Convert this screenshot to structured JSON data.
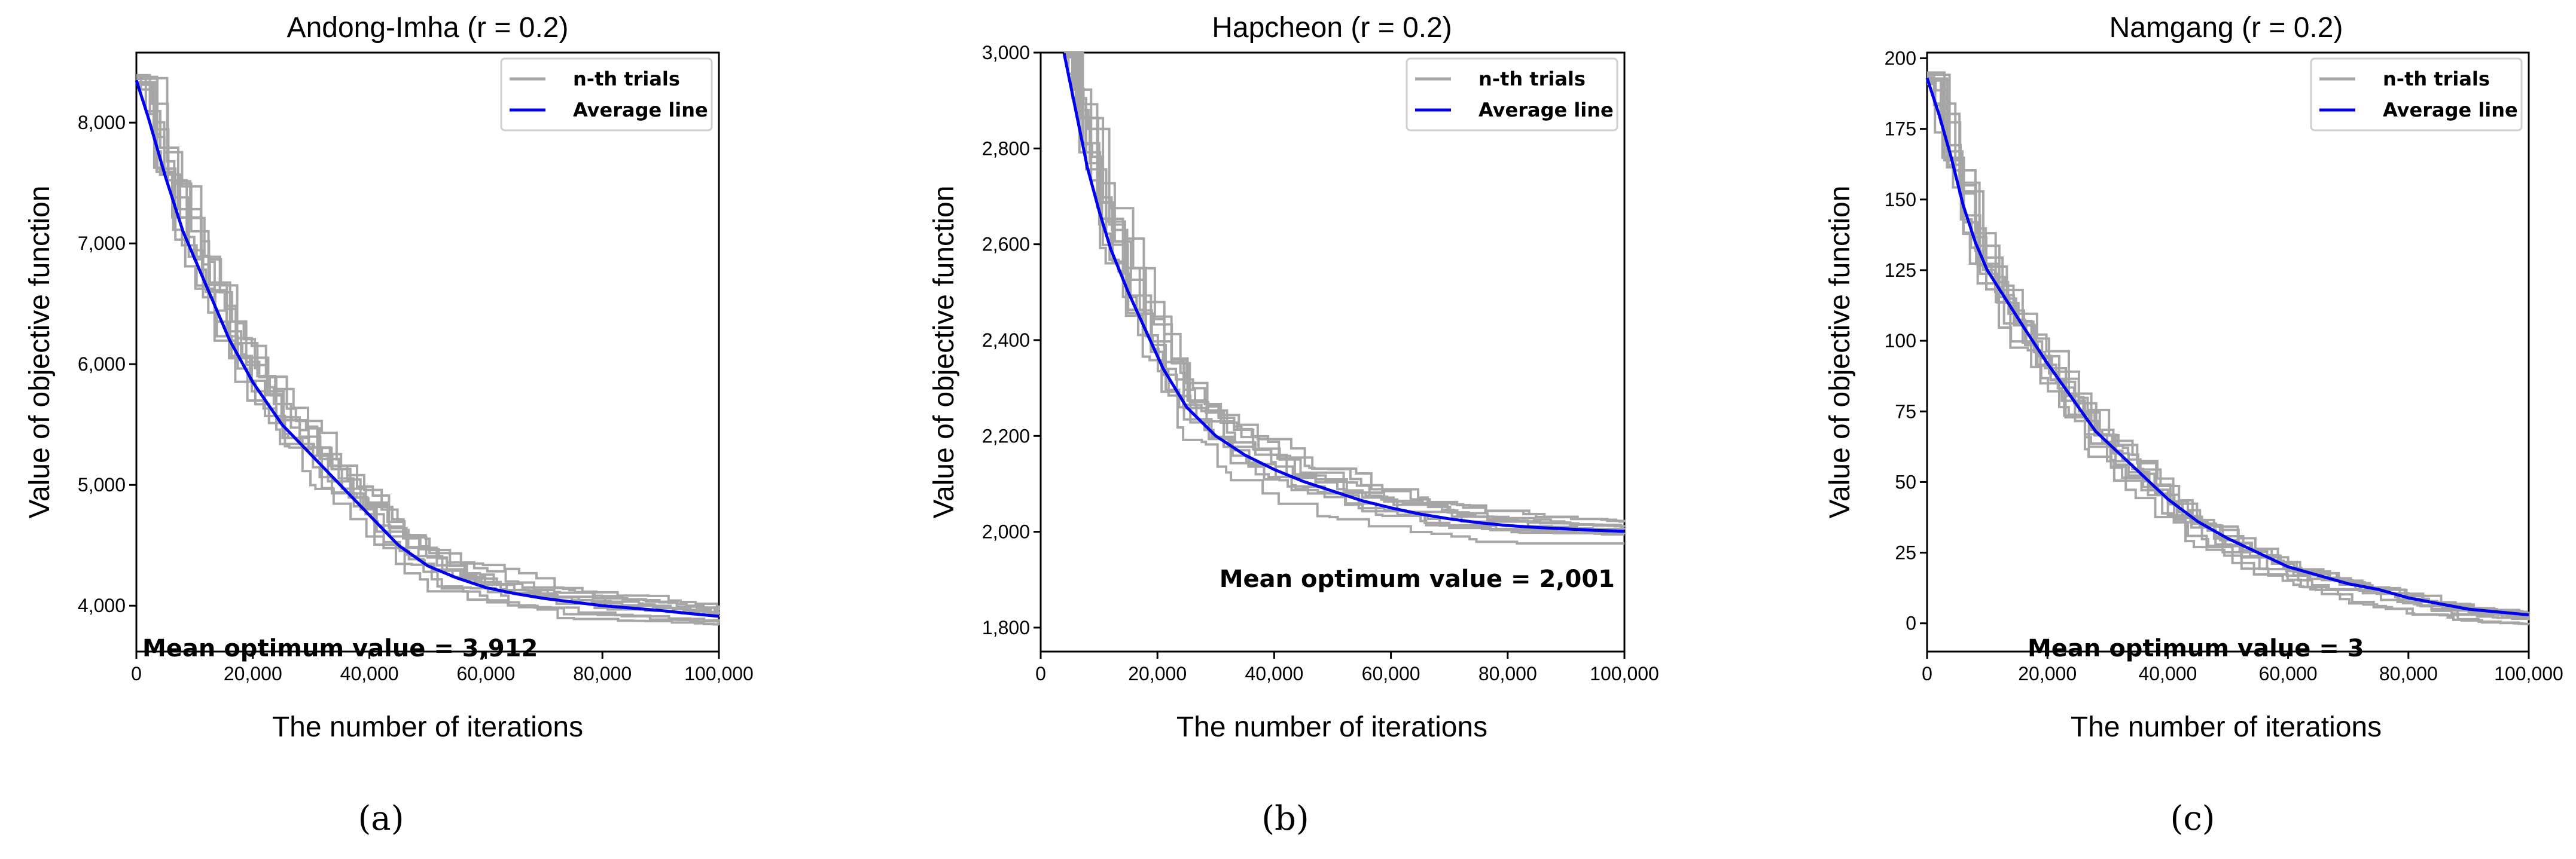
{
  "chart_data": [
    {
      "type": "line",
      "panel_caption": "(a)",
      "title": "Andong-Imha (r = 0.2)",
      "xlabel": "The number of iterations",
      "ylabel": "Value of objective function",
      "xlim": [
        0,
        100000
      ],
      "ylim": [
        3620,
        8580
      ],
      "xticks": [
        0,
        20000,
        40000,
        60000,
        80000,
        100000
      ],
      "xtick_labels": [
        "0",
        "20,000",
        "40,000",
        "60,000",
        "80,000",
        "100,000"
      ],
      "yticks": [
        4000,
        5000,
        6000,
        7000,
        8000
      ],
      "ytick_labels": [
        "4,000",
        "5,000",
        "6,000",
        "7,000",
        "8,000"
      ],
      "annotation": "Mean optimum value = 3,912",
      "legend": {
        "placement": "top-right",
        "entries": [
          "n-th trials",
          "Average line"
        ]
      },
      "series": [
        {
          "name": "n-th trials",
          "color": "#a6a6a6",
          "trial_count": 10
        },
        {
          "name": "Average line",
          "color": "#0000ee",
          "x": [
            0,
            2000,
            5000,
            8000,
            12000,
            16000,
            20000,
            25000,
            30000,
            35000,
            40000,
            45000,
            50000,
            55000,
            60000,
            65000,
            70000,
            75000,
            80000,
            85000,
            90000,
            95000,
            100000
          ],
          "y": [
            8350,
            8050,
            7550,
            7100,
            6650,
            6200,
            5850,
            5500,
            5250,
            5000,
            4750,
            4500,
            4330,
            4230,
            4150,
            4100,
            4060,
            4030,
            4000,
            3980,
            3960,
            3935,
            3912
          ]
        }
      ]
    },
    {
      "type": "line",
      "panel_caption": "(b)",
      "title": "Hapcheon (r = 0.2)",
      "xlabel": "The number of iterations",
      "ylabel": "Value of objective function",
      "xlim": [
        0,
        100000
      ],
      "ylim": [
        1750,
        3000
      ],
      "xticks": [
        0,
        20000,
        40000,
        60000,
        80000,
        100000
      ],
      "xtick_labels": [
        "0",
        "20,000",
        "40,000",
        "60,000",
        "80,000",
        "100,000"
      ],
      "yticks": [
        1800,
        2000,
        2200,
        2400,
        2600,
        2800,
        3000
      ],
      "ytick_labels": [
        "1,800",
        "2,000",
        "2,200",
        "2,400",
        "2,600",
        "2,800",
        "3,000"
      ],
      "annotation": "Mean optimum value = 2,001",
      "legend": {
        "placement": "top-right",
        "entries": [
          "n-th trials",
          "Average line"
        ]
      },
      "series": [
        {
          "name": "n-th trials",
          "color": "#a6a6a6",
          "trial_count": 10
        },
        {
          "name": "Average line",
          "color": "#0000ee",
          "x": [
            4000,
            6000,
            8000,
            10000,
            12000,
            15000,
            18000,
            21000,
            25000,
            30000,
            35000,
            40000,
            45000,
            50000,
            55000,
            60000,
            65000,
            70000,
            75000,
            80000,
            85000,
            90000,
            95000,
            100000
          ],
          "y": [
            3000,
            2880,
            2760,
            2670,
            2590,
            2500,
            2420,
            2340,
            2260,
            2200,
            2160,
            2130,
            2105,
            2085,
            2065,
            2050,
            2037,
            2027,
            2019,
            2013,
            2009,
            2006,
            2003,
            2001
          ]
        }
      ]
    },
    {
      "type": "line",
      "panel_caption": "(c)",
      "title": "Namgang (r = 0.2)",
      "xlabel": "The number of iterations",
      "ylabel": "Value of objective function",
      "xlim": [
        0,
        100000
      ],
      "ylim": [
        -10,
        202
      ],
      "xticks": [
        0,
        20000,
        40000,
        60000,
        80000,
        100000
      ],
      "xtick_labels": [
        "0",
        "20,000",
        "40,000",
        "60,000",
        "80,000",
        "100,000"
      ],
      "yticks": [
        0,
        25,
        50,
        75,
        100,
        125,
        150,
        175,
        200
      ],
      "ytick_labels": [
        "0",
        "25",
        "50",
        "75",
        "100",
        "125",
        "150",
        "175",
        "200"
      ],
      "annotation": "Mean optimum value = 3",
      "legend": {
        "placement": "top-right",
        "entries": [
          "n-th trials",
          "Average line"
        ]
      },
      "series": [
        {
          "name": "n-th trials",
          "color": "#a6a6a6",
          "trial_count": 10
        },
        {
          "name": "Average line",
          "color": "#0000ee",
          "x": [
            0,
            2000,
            4000,
            6000,
            8000,
            10000,
            13000,
            16000,
            20000,
            24000,
            28000,
            32000,
            36000,
            40000,
            45000,
            50000,
            55000,
            60000,
            65000,
            70000,
            75000,
            80000,
            85000,
            90000,
            95000,
            100000
          ],
          "y": [
            193,
            180,
            165,
            148,
            135,
            125,
            115,
            105,
            92,
            80,
            68,
            60,
            52,
            44,
            36,
            30,
            25,
            20,
            17,
            14,
            12,
            9,
            7,
            5,
            4,
            3
          ]
        }
      ]
    }
  ]
}
